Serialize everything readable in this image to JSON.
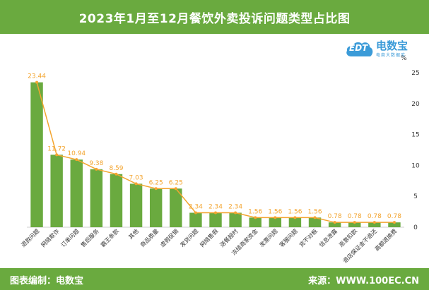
{
  "header": {
    "title": "2023年1月至12月餐饮外卖投诉问题类型占比图"
  },
  "logo": {
    "brand": "电数宝",
    "cloud_text": "EDT",
    "tagline": "电商大数据库"
  },
  "footer": {
    "left": "图表编制：电数宝",
    "right": "来源：WWW.100EC.CN"
  },
  "colors": {
    "bar": "#6aaa3f",
    "line": "#f3a530",
    "label": "#f3a530",
    "band": "#6aaa3f"
  },
  "chart_data": {
    "type": "bar",
    "unit": "%",
    "categories": [
      "退款问题",
      "网络欺诈",
      "订单问题",
      "售后服务",
      "霸王条款",
      "其他",
      "商品质量",
      "虚假促销",
      "发货问题",
      "网络售假",
      "送餐超时",
      "冻结商家资金",
      "发票问题",
      "客服问题",
      "货不对板",
      "信息泄露",
      "恶意扣款",
      "退店保证金不退还",
      "高额退换费"
    ],
    "values": [
      23.44,
      11.72,
      10.94,
      9.38,
      8.59,
      7.03,
      6.25,
      6.25,
      2.34,
      2.34,
      2.34,
      1.56,
      1.56,
      1.56,
      1.56,
      0.78,
      0.78,
      0.78,
      0.78
    ],
    "data_labels": [
      "23.44",
      "11.72",
      "10.94",
      "9.38",
      "8.59",
      "7.03",
      "6.25",
      "6.25",
      "2.34",
      "2.34",
      "2.34",
      "1.56",
      "1.56",
      "1.56",
      "1.56",
      "0.78",
      "0.78",
      "0.78",
      "0.78"
    ],
    "ylim": [
      0,
      25
    ],
    "yticks": [
      "0",
      "5",
      "10",
      "15",
      "20",
      "25"
    ],
    "line_overlay": true,
    "grid": false
  }
}
